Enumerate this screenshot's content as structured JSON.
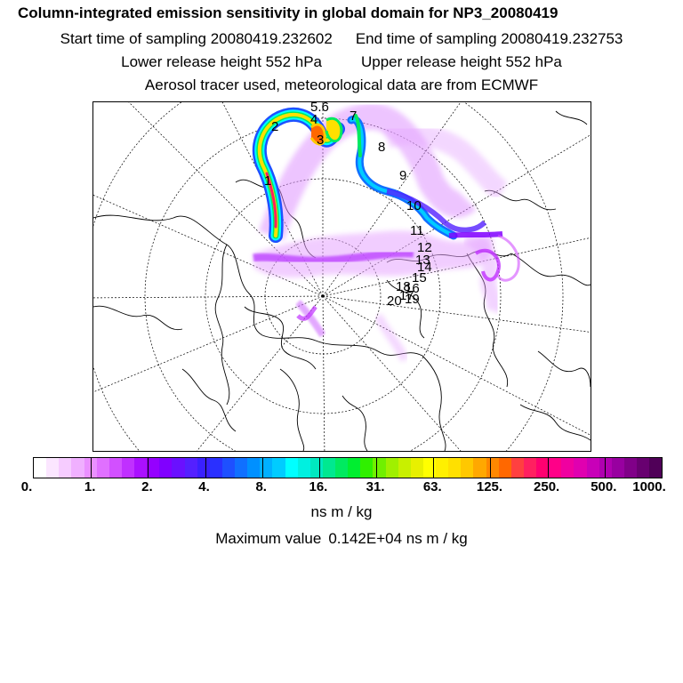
{
  "titles": {
    "line1": "Column-integrated emission sensitivity in global domain for NP3_20080419",
    "start_label": "Start time of sampling 20080419.232602",
    "end_label": "End time of sampling 20080419.232753",
    "lower_label": "Lower release height  552 hPa",
    "upper_label": "Upper release height  552 hPa",
    "line4": "Aerosol tracer used, meteorological data are from ECMWF"
  },
  "colorbar": {
    "labels": [
      "0.",
      "1.",
      "2.",
      "4.",
      "8.",
      "16.",
      "31.",
      "63.",
      "125.",
      "250.",
      "500.",
      "1000."
    ],
    "colors": [
      "#ffffff",
      "#fbe6ff",
      "#f6ccff",
      "#f0b0ff",
      "#ea90ff",
      "#e070ff",
      "#d250ff",
      "#c030ff",
      "#aa10ff",
      "#9500ff",
      "#8000ff",
      "#6a10ff",
      "#5420ff",
      "#3a20ff",
      "#2a30ff",
      "#1e50ff",
      "#1070ff",
      "#0090ff",
      "#00b0ff",
      "#00ccff",
      "#00ffff",
      "#00f0e0",
      "#00e8c0",
      "#00e890",
      "#00ea60",
      "#00ee30",
      "#30f000",
      "#70f000",
      "#a0f000",
      "#c8f000",
      "#e8f000",
      "#ffff00",
      "#fff000",
      "#ffe000",
      "#ffc800",
      "#ffa800",
      "#ff8800",
      "#ff6800",
      "#ff4040",
      "#ff2060",
      "#ff0070",
      "#ff0088",
      "#f000a0",
      "#e000b0",
      "#c800b8",
      "#b000b0",
      "#9800a0",
      "#800088",
      "#680070",
      "#500058"
    ]
  },
  "units": "ns m / kg",
  "max_label": "Maximum value",
  "max_value": "0.142E+04 ns m / kg",
  "trajectory_labels": [
    "5.6",
    "2",
    "4",
    "3",
    "7",
    "8",
    "9",
    "1",
    "10",
    "11",
    "12",
    "13",
    "14",
    "15",
    "16",
    "20",
    "17",
    "18",
    "19"
  ]
}
